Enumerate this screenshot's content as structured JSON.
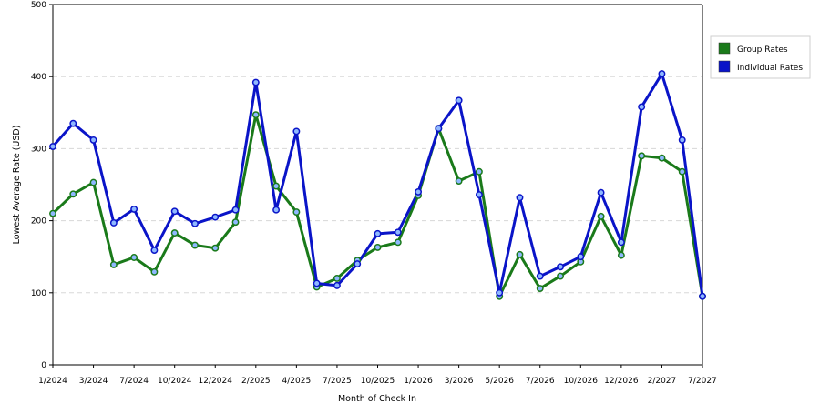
{
  "chart_data": {
    "type": "line",
    "ylabel": "Lowest Average Rate (USD)",
    "xlabel": "Month of Check In",
    "ylim": [
      0,
      500
    ],
    "yticks": [
      0,
      100,
      200,
      300,
      400,
      500
    ],
    "grid": true,
    "legend_position": "right",
    "x_tick_labels": [
      "1/2024",
      "3/2024",
      "7/2024",
      "10/2024",
      "12/2024",
      "2/2025",
      "4/2025",
      "7/2025",
      "10/2025",
      "1/2026",
      "3/2026",
      "5/2026",
      "7/2026",
      "10/2026",
      "12/2026",
      "2/2027",
      "7/2027"
    ],
    "series": [
      {
        "name": "Group Rates",
        "color": "#1a7a1a",
        "values": [
          210,
          237,
          253,
          139,
          149,
          129,
          183,
          166,
          162,
          198,
          347,
          248,
          212,
          108,
          120,
          145,
          163,
          170,
          235,
          328,
          255,
          268,
          95,
          153,
          106,
          123,
          143,
          206,
          152,
          290,
          287,
          268,
          95
        ]
      },
      {
        "name": "Individual Rates",
        "color": "#0a14c8",
        "values": [
          303,
          335,
          312,
          197,
          216,
          159,
          213,
          196,
          205,
          215,
          392,
          215,
          324,
          113,
          110,
          140,
          182,
          184,
          240,
          328,
          367,
          236,
          100,
          232,
          123,
          136,
          150,
          239,
          170,
          358,
          404,
          312,
          95
        ]
      }
    ]
  }
}
